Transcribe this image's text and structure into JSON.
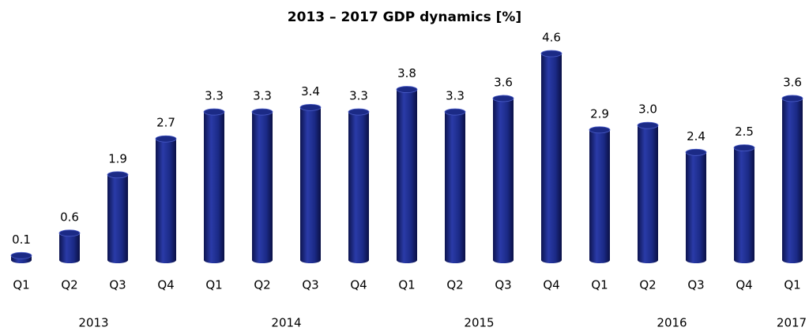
{
  "chart_data": {
    "type": "bar",
    "title": "2013 – 2017 GDP dynamics [%]",
    "categories": [
      "Q1",
      "Q2",
      "Q3",
      "Q4",
      "Q1",
      "Q2",
      "Q3",
      "Q4",
      "Q1",
      "Q2",
      "Q3",
      "Q4",
      "Q1",
      "Q2",
      "Q3",
      "Q4",
      "Q1"
    ],
    "values": [
      0.1,
      0.6,
      1.9,
      2.7,
      3.3,
      3.3,
      3.4,
      3.3,
      3.8,
      3.3,
      3.6,
      4.6,
      2.9,
      3.0,
      2.4,
      2.5,
      3.6
    ],
    "value_labels": [
      "0.1",
      "0.6",
      "1.9",
      "2.7",
      "3.3",
      "3.3",
      "3.4",
      "3.3",
      "3.8",
      "3.3",
      "3.6",
      "4.6",
      "2.9",
      "3.0",
      "2.4",
      "2.5",
      "3.6"
    ],
    "x_groups": [
      {
        "label": "2013",
        "count": 4
      },
      {
        "label": "2014",
        "count": 4
      },
      {
        "label": "2015",
        "count": 4
      },
      {
        "label": "2016",
        "count": 4
      },
      {
        "label": "2017",
        "count": 1
      }
    ],
    "color": "#1b2a86"
  }
}
